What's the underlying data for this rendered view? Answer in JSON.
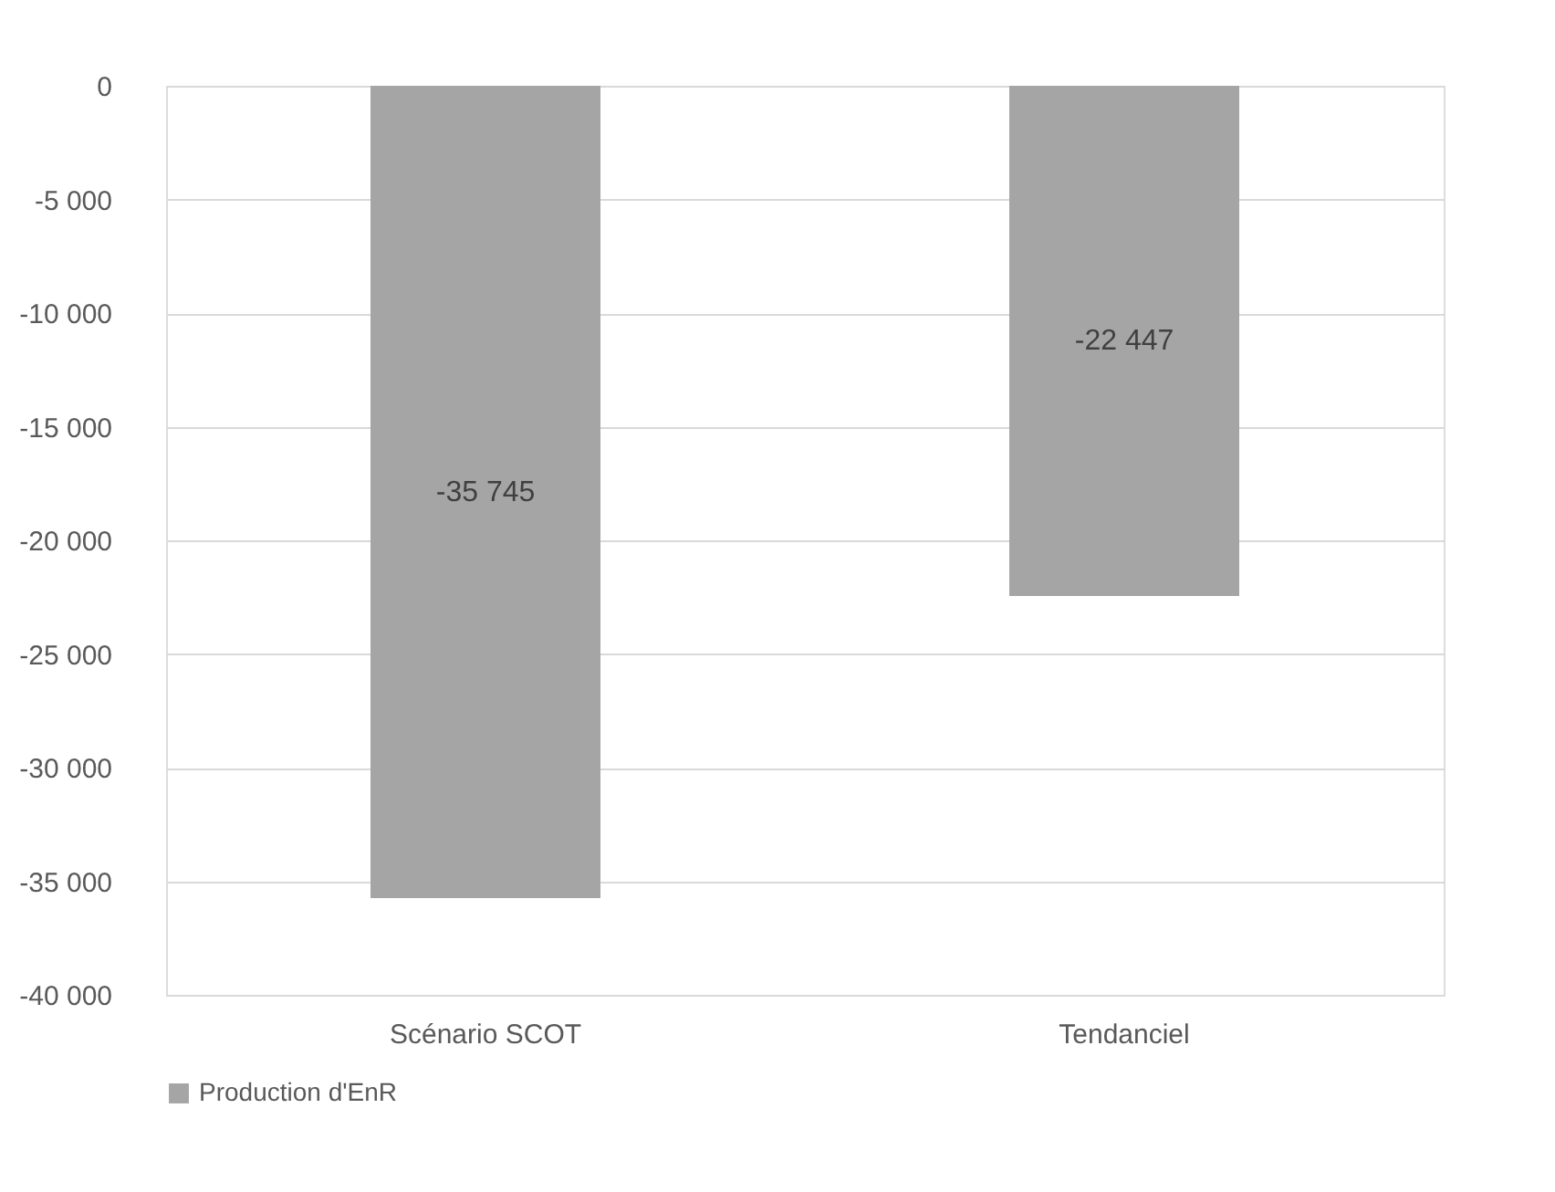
{
  "chart_data": {
    "type": "bar",
    "categories": [
      "Scénario SCOT",
      "Tendanciel"
    ],
    "series": [
      {
        "name": "Production d'EnR",
        "color": "#a5a5a5",
        "values": [
          -35745,
          -22447
        ],
        "value_labels": [
          "-35 745",
          "-22 447"
        ]
      }
    ],
    "ylim": [
      -40000,
      0
    ],
    "yticks": [
      {
        "value": 0,
        "label": "0"
      },
      {
        "value": -5000,
        "label": "-5 000"
      },
      {
        "value": -10000,
        "label": "-10 000"
      },
      {
        "value": -15000,
        "label": "-15 000"
      },
      {
        "value": -20000,
        "label": "-20 000"
      },
      {
        "value": -25000,
        "label": "-25 000"
      },
      {
        "value": -30000,
        "label": "-30 000"
      },
      {
        "value": -35000,
        "label": "-35 000"
      },
      {
        "value": -40000,
        "label": "-40 000"
      }
    ],
    "grid": "y",
    "legend": "bottom"
  }
}
